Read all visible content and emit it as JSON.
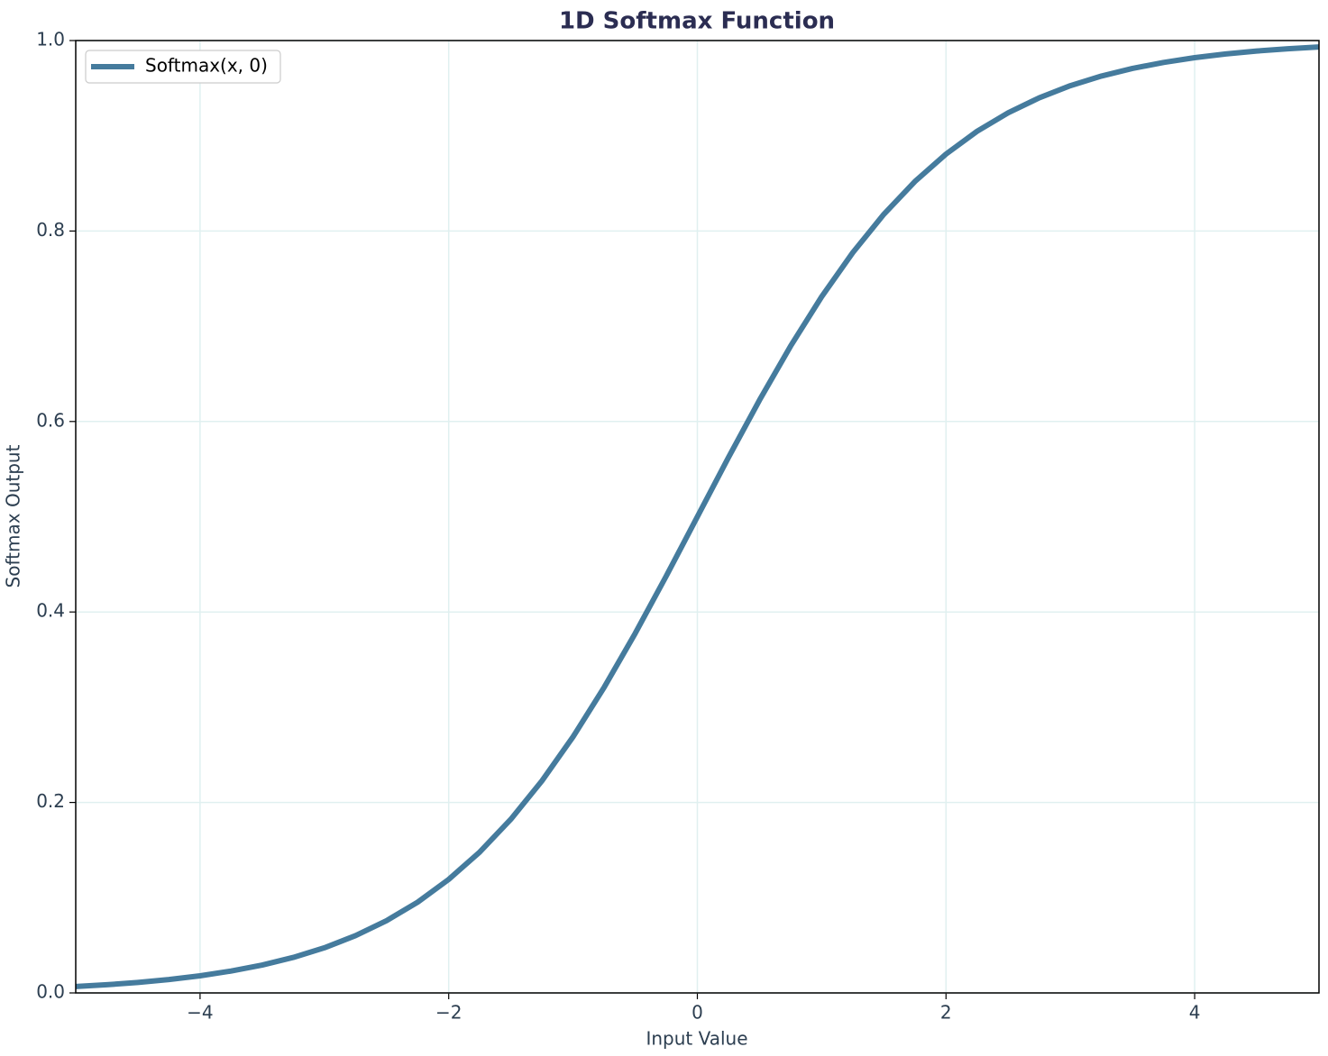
{
  "chart_data": {
    "type": "line",
    "title": "1D Softmax Function",
    "x_label": "Input Value",
    "y_label": "Softmax Output",
    "x": [
      -5,
      -4.75,
      -4.5,
      -4.25,
      -4,
      -3.75,
      -3.5,
      -3.25,
      -3,
      -2.75,
      -2.5,
      -2.25,
      -2,
      -1.75,
      -1.5,
      -1.25,
      -1,
      -0.75,
      -0.5,
      -0.25,
      0,
      0.25,
      0.5,
      0.75,
      1,
      1.25,
      1.5,
      1.75,
      2,
      2.25,
      2.5,
      2.75,
      3,
      3.25,
      3.5,
      3.75,
      4,
      4.25,
      4.5,
      4.75,
      5
    ],
    "series": [
      {
        "name": "Softmax(x, 0)",
        "color": "#457b9d",
        "values": [
          0.0067,
          0.0086,
          0.011,
          0.0141,
          0.018,
          0.023,
          0.0293,
          0.0373,
          0.0474,
          0.0601,
          0.0759,
          0.0953,
          0.1192,
          0.148,
          0.1824,
          0.2227,
          0.2689,
          0.3208,
          0.3775,
          0.4378,
          0.5,
          0.5622,
          0.6225,
          0.6792,
          0.7311,
          0.7773,
          0.8176,
          0.852,
          0.8808,
          0.9047,
          0.9241,
          0.9399,
          0.9526,
          0.9627,
          0.9707,
          0.977,
          0.982,
          0.9859,
          0.989,
          0.9914,
          0.9933
        ]
      }
    ],
    "xlim": [
      -5,
      5
    ],
    "xticks": [
      {
        "value": -4,
        "label": "−4"
      },
      {
        "value": -2,
        "label": "−2"
      },
      0,
      2,
      4
    ],
    "ylim": [
      0,
      1
    ],
    "yticks": [
      {
        "value": 0,
        "label": "0.0"
      },
      0.2,
      0.4,
      0.6,
      0.8,
      {
        "value": 1,
        "label": "1.0"
      }
    ],
    "grid": true,
    "legend": "upper left"
  }
}
